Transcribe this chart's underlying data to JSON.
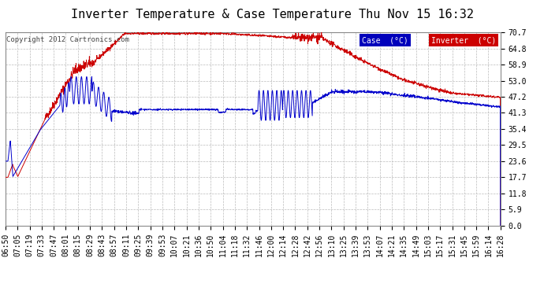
{
  "title": "Inverter Temperature & Case Temperature Thu Nov 15 16:32",
  "copyright": "Copyright 2012 Cartronics.com",
  "background_color": "#ffffff",
  "plot_bg_color": "#ffffff",
  "grid_color": "#bbbbbb",
  "yticks": [
    0.0,
    5.9,
    11.8,
    17.7,
    23.6,
    29.5,
    35.4,
    41.3,
    47.2,
    53.0,
    58.9,
    64.8,
    70.7
  ],
  "ylim": [
    0.0,
    70.7
  ],
  "xtick_labels": [
    "06:50",
    "07:05",
    "07:19",
    "07:33",
    "07:47",
    "08:01",
    "08:15",
    "08:29",
    "08:43",
    "08:57",
    "09:11",
    "09:25",
    "09:39",
    "09:53",
    "10:07",
    "10:21",
    "10:36",
    "10:50",
    "11:04",
    "11:18",
    "11:32",
    "11:46",
    "12:00",
    "12:14",
    "12:28",
    "12:42",
    "12:56",
    "13:10",
    "13:25",
    "13:39",
    "13:53",
    "14:07",
    "14:21",
    "14:35",
    "14:49",
    "15:03",
    "15:17",
    "15:31",
    "15:45",
    "15:59",
    "16:14",
    "16:28"
  ],
  "legend_case_label": "Case  (°C)",
  "legend_inverter_label": "Inverter  (°C)",
  "legend_case_bg": "#0000bb",
  "legend_inverter_bg": "#cc0000",
  "line_case_color": "#0000cc",
  "line_inverter_color": "#cc0000",
  "title_fontsize": 11,
  "tick_fontsize": 7
}
